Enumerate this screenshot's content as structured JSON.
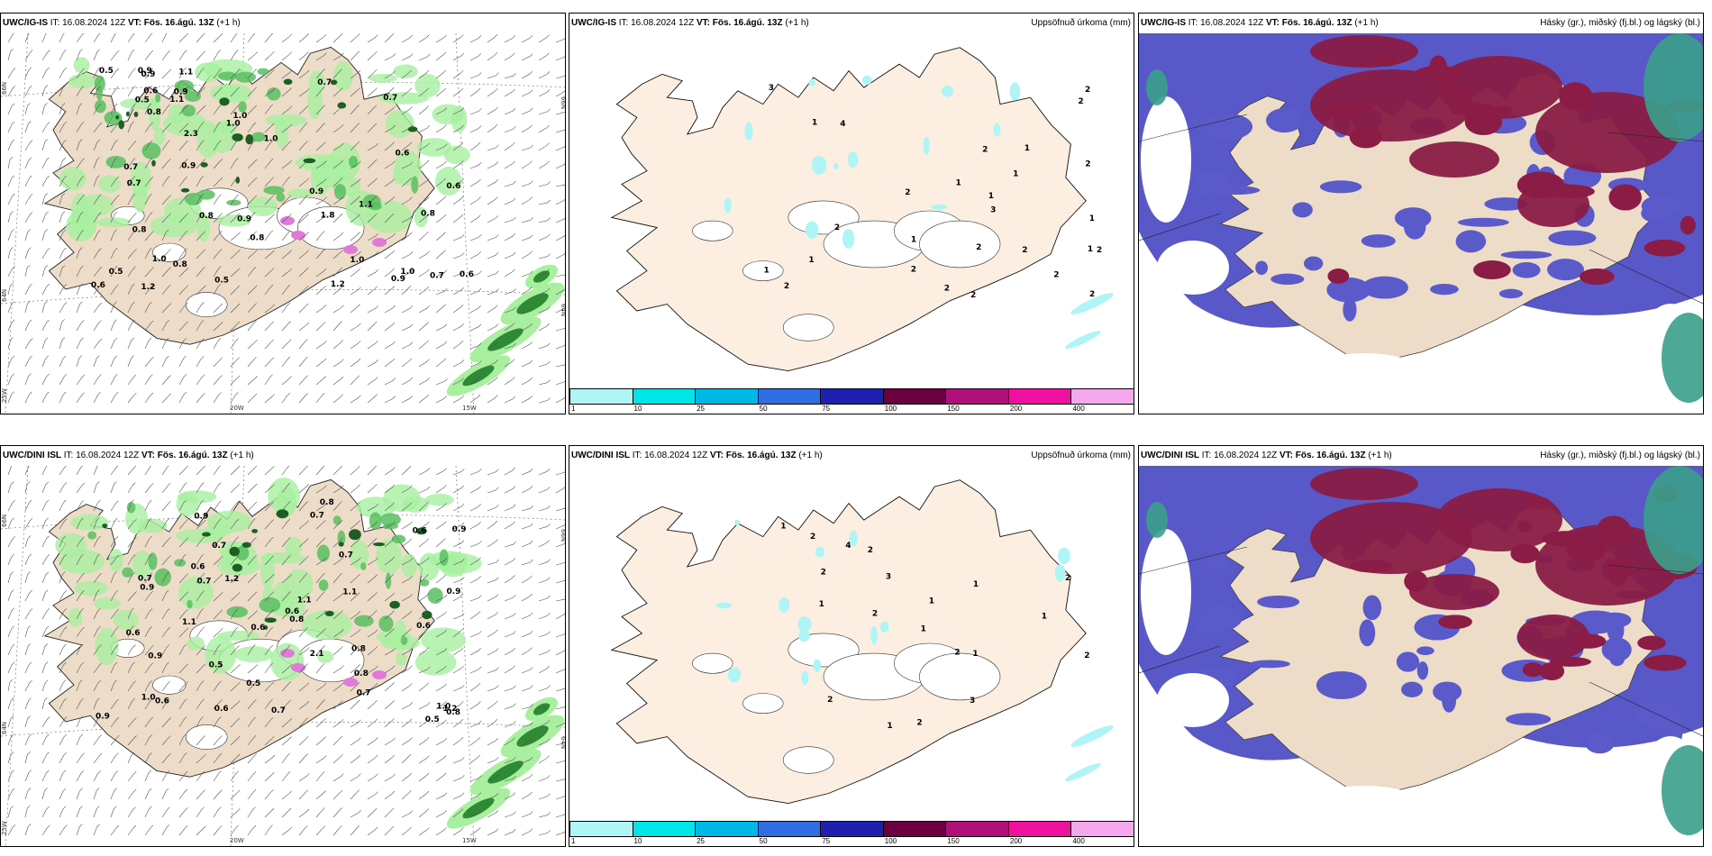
{
  "rows": [
    {
      "model": "UWC/IG-IS",
      "it_label": "IT:",
      "it": "16.08.2024 12Z",
      "vt_label": "VT:",
      "vt": "Fös. 16.ágú. 13Z",
      "lead": "(+1 h)"
    },
    {
      "model": "UWC/DINI ISL",
      "it_label": "IT:",
      "it": "16.08.2024 12Z",
      "vt_label": "VT:",
      "vt": "Fös. 16.ágú. 13Z",
      "lead": "(+1 h)"
    }
  ],
  "titles": {
    "precip": "Uppsöfnuð úrkoma (mm)",
    "cloud": "Hásky (gr.), miðský (fj.bl.) og lágský (bl.)"
  },
  "axis": {
    "lat66": "66N",
    "lat64": "64N",
    "lon25": "25W",
    "lon20": "20W",
    "lon15": "15W"
  },
  "colorbar": {
    "colors": [
      "#b0f5f5",
      "#00e5e5",
      "#00b8e6",
      "#2f6ee0",
      "#2020b0",
      "#6a0040",
      "#b0107a",
      "#f010a0",
      "#f5a8ee"
    ],
    "ticks": [
      "1",
      "10",
      "25",
      "50",
      "75",
      "100",
      "150",
      "200",
      "400"
    ]
  },
  "wind_labels_top": [
    "0.9",
    "0.6",
    "0.5",
    "1.2",
    "0.6",
    "1.0",
    "0.8",
    "1.0",
    "0.9",
    "0.7",
    "0.8",
    "0.5",
    "1.0",
    "0.7",
    "0.9",
    "0.6",
    "0.5",
    "0.8",
    "0.7",
    "1.0",
    "1.2",
    "0.8",
    "0.9",
    "1.1",
    "0.5",
    "0.9",
    "0.7",
    "0.8",
    "0.6",
    "1.0",
    "0.6",
    "0.7",
    "1.1",
    "0.8",
    "0.9",
    "2.3",
    "0.9",
    "1.1",
    "1.8",
    "1.0"
  ],
  "wind_labels_bottom": [
    "0.5",
    "1.1",
    "0.8",
    "0.6",
    "0.6",
    "0.9",
    "0.9",
    "0.7",
    "0.5",
    "0.8",
    "0.6",
    "1.0",
    "0.8",
    "0.7",
    "0.6",
    "0.9",
    "1.0",
    "0.5",
    "0.7",
    "0.6",
    "2.1",
    "0.7",
    "0.9",
    "1.2",
    "0.8",
    "0.6",
    "0.9",
    "0.7",
    "1.1",
    "0.9",
    "0.7",
    "0.8",
    "0.6",
    "1.2",
    "0.6",
    "0.7",
    "1.1"
  ],
  "precip_labels_top": [
    "3",
    "3",
    "2",
    "2",
    "1",
    "2",
    "1",
    "1",
    "1",
    "1",
    "2",
    "2",
    "1",
    "1",
    "2",
    "2",
    "4",
    "2",
    "1",
    "2",
    "1",
    "2",
    "2",
    "2",
    "2",
    "2",
    "2",
    "1"
  ],
  "precip_labels_bottom": [
    "1",
    "2",
    "2",
    "4",
    "2",
    "2",
    "1",
    "1",
    "2",
    "2",
    "3",
    "1",
    "2",
    "2",
    "1",
    "3",
    "1",
    "1",
    "2",
    "1"
  ]
}
